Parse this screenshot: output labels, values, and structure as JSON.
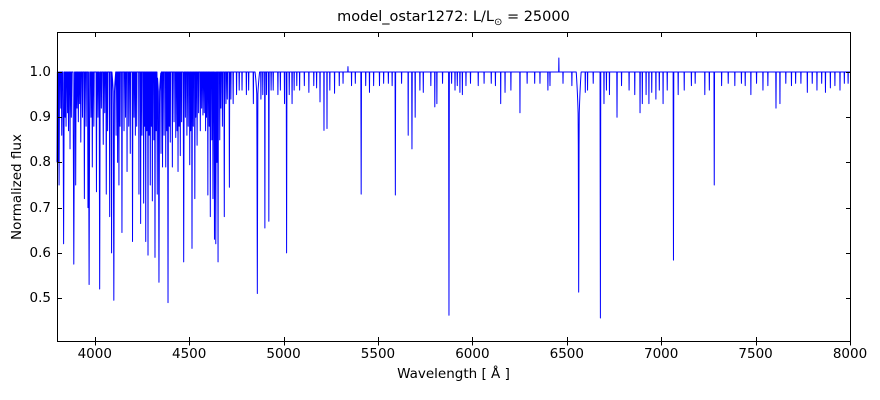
{
  "figure": {
    "background": "#ffffff"
  },
  "chart_data": {
    "type": "line",
    "title": "model_ostar1272: L/L⊙ = 25000",
    "title_parts": {
      "prefix": "model_ostar1272: L/L",
      "sub": "⊙",
      "suffix": " = 25000"
    },
    "xlabel": "Wavelength [ Å ]",
    "ylabel": "Normalized flux",
    "xlim": [
      3800,
      8000
    ],
    "ylim": [
      0.405,
      1.0885
    ],
    "xticks": [
      4000,
      4500,
      5000,
      5500,
      6000,
      6500,
      7000,
      7500,
      8000
    ],
    "yticks": [
      0.5,
      0.6,
      0.7,
      0.8,
      0.9,
      1.0
    ],
    "grid": false,
    "legend": null,
    "line_color": "#0000ff",
    "axis_color": "#000000",
    "continuum_flux": 1.0,
    "absorption_lines": [
      [
        3799,
        0.7,
        6
      ],
      [
        3806,
        0.8,
        5
      ],
      [
        3811,
        0.75,
        5
      ],
      [
        3820,
        0.92,
        4
      ],
      [
        3825,
        0.86,
        4
      ],
      [
        3835,
        0.62,
        7
      ],
      [
        3843,
        0.9,
        4
      ],
      [
        3848,
        0.88,
        4
      ],
      [
        3856,
        0.91,
        4
      ],
      [
        3861,
        0.87,
        4
      ],
      [
        3869,
        0.83,
        4
      ],
      [
        3876,
        0.9,
        4
      ],
      [
        3889,
        0.575,
        8
      ],
      [
        3899,
        0.75,
        4
      ],
      [
        3906,
        0.92,
        4
      ],
      [
        3913,
        0.89,
        4
      ],
      [
        3920,
        0.93,
        4
      ],
      [
        3926,
        0.845,
        4
      ],
      [
        3935,
        0.9,
        4
      ],
      [
        3945,
        0.72,
        4
      ],
      [
        3954,
        0.88,
        4
      ],
      [
        3964,
        0.7,
        4
      ],
      [
        3970,
        0.53,
        7
      ],
      [
        3980,
        0.9,
        4
      ],
      [
        3987,
        0.79,
        4
      ],
      [
        3995,
        0.88,
        4
      ],
      [
        4009,
        0.735,
        4
      ],
      [
        4017,
        0.9,
        4
      ],
      [
        4026,
        0.52,
        5.5
      ],
      [
        4035,
        0.92,
        4
      ],
      [
        4045,
        0.84,
        4
      ],
      [
        4053,
        0.91,
        3
      ],
      [
        4061,
        0.73,
        3.5
      ],
      [
        4068,
        0.87,
        3
      ],
      [
        4079,
        0.68,
        3.5
      ],
      [
        4089,
        0.6,
        3.5
      ],
      [
        4101,
        0.495,
        7
      ],
      [
        4101,
        0.88,
        20
      ],
      [
        4113,
        0.86,
        3
      ],
      [
        4121,
        0.8,
        3.5
      ],
      [
        4128,
        0.75,
        3
      ],
      [
        4134,
        0.88,
        3
      ],
      [
        4144,
        0.645,
        4
      ],
      [
        4155,
        0.87,
        3
      ],
      [
        4163,
        0.9,
        3
      ],
      [
        4171,
        0.78,
        3
      ],
      [
        4180,
        0.88,
        3
      ],
      [
        4188,
        0.82,
        3
      ],
      [
        4200,
        0.625,
        4
      ],
      [
        4208,
        0.9,
        3
      ],
      [
        4215,
        0.86,
        3
      ],
      [
        4222,
        0.88,
        3
      ],
      [
        4234,
        0.73,
        3
      ],
      [
        4243,
        0.665,
        3
      ],
      [
        4250,
        0.86,
        3
      ],
      [
        4259,
        0.71,
        3
      ],
      [
        4264,
        0.88,
        2.5
      ],
      [
        4270,
        0.625,
        3
      ],
      [
        4276,
        0.87,
        2.5
      ],
      [
        4282,
        0.595,
        3.5
      ],
      [
        4288,
        0.86,
        2.5
      ],
      [
        4294,
        0.75,
        3
      ],
      [
        4300,
        0.88,
        2.5
      ],
      [
        4305,
        0.715,
        3
      ],
      [
        4313,
        0.85,
        3
      ],
      [
        4319,
        0.59,
        3.5
      ],
      [
        4325,
        0.87,
        3
      ],
      [
        4331,
        0.73,
        3
      ],
      [
        4340,
        0.535,
        7
      ],
      [
        4340,
        0.88,
        20
      ],
      [
        4351,
        0.82,
        3
      ],
      [
        4359,
        0.79,
        3
      ],
      [
        4367,
        0.86,
        3
      ],
      [
        4376,
        0.79,
        3
      ],
      [
        4382,
        0.87,
        2.5
      ],
      [
        4388,
        0.49,
        4.5
      ],
      [
        4395,
        0.88,
        2.5
      ],
      [
        4400,
        0.845,
        3
      ],
      [
        4411,
        0.79,
        3
      ],
      [
        4420,
        0.89,
        3
      ],
      [
        4429,
        0.855,
        3
      ],
      [
        4436,
        0.87,
        2.5
      ],
      [
        4441,
        0.78,
        3
      ],
      [
        4447,
        0.88,
        2.5
      ],
      [
        4453,
        0.815,
        3
      ],
      [
        4460,
        0.89,
        2.5
      ],
      [
        4471,
        0.58,
        5
      ],
      [
        4480,
        0.9,
        2.5
      ],
      [
        4488,
        0.86,
        3
      ],
      [
        4495,
        0.88,
        2.5
      ],
      [
        4503,
        0.795,
        3
      ],
      [
        4508,
        0.87,
        2.5
      ],
      [
        4515,
        0.61,
        4
      ],
      [
        4522,
        0.88,
        2.5
      ],
      [
        4530,
        0.72,
        3
      ],
      [
        4535,
        0.9,
        2.5
      ],
      [
        4542,
        0.838,
        3.5
      ],
      [
        4550,
        0.91,
        2.5
      ],
      [
        4559,
        0.87,
        3
      ],
      [
        4566,
        0.92,
        2.5
      ],
      [
        4573,
        0.905,
        3
      ],
      [
        4580,
        0.91,
        2.5
      ],
      [
        4587,
        0.87,
        3
      ],
      [
        4592,
        0.9,
        2.5
      ],
      [
        4599,
        0.728,
        3
      ],
      [
        4606,
        0.88,
        2.5
      ],
      [
        4612,
        0.68,
        3.5
      ],
      [
        4620,
        0.85,
        3
      ],
      [
        4626,
        0.72,
        3.5
      ],
      [
        4634,
        0.63,
        4.5
      ],
      [
        4641,
        0.62,
        5
      ],
      [
        4647,
        0.8,
        3
      ],
      [
        4653,
        0.58,
        4
      ],
      [
        4662,
        0.85,
        3
      ],
      [
        4668,
        0.92,
        2.5
      ],
      [
        4676,
        0.88,
        3
      ],
      [
        4686,
        0.68,
        4
      ],
      [
        4695,
        0.93,
        2.5
      ],
      [
        4702,
        0.94,
        2.5
      ],
      [
        4713,
        0.745,
        3.5
      ],
      [
        4721,
        0.94,
        2.5
      ],
      [
        4733,
        0.93,
        2.5
      ],
      [
        4751,
        0.95,
        2.5
      ],
      [
        4765,
        0.96,
        2.5
      ],
      [
        4780,
        0.96,
        2.5
      ],
      [
        4803,
        0.95,
        2.5
      ],
      [
        4815,
        0.96,
        2.5
      ],
      [
        4840,
        0.93,
        2.5
      ],
      [
        4861,
        0.51,
        6
      ],
      [
        4861,
        0.89,
        24
      ],
      [
        4880,
        0.94,
        2.5
      ],
      [
        4890,
        0.95,
        2.5
      ],
      [
        4901,
        0.655,
        3
      ],
      [
        4910,
        0.95,
        2.5
      ],
      [
        4922,
        0.67,
        3.5
      ],
      [
        4934,
        0.96,
        2.5
      ],
      [
        4945,
        0.96,
        2.5
      ],
      [
        4970,
        0.95,
        2.5
      ],
      [
        4983,
        0.96,
        2.5
      ],
      [
        5005,
        0.93,
        2.5
      ],
      [
        5016,
        0.6,
        3.5
      ],
      [
        5030,
        0.95,
        2.5
      ],
      [
        5045,
        0.93,
        2.5
      ],
      [
        5056,
        0.96,
        2
      ],
      [
        5070,
        0.97,
        2
      ],
      [
        5085,
        0.96,
        2
      ],
      [
        5110,
        0.97,
        2
      ],
      [
        5134,
        0.955,
        2
      ],
      [
        5160,
        0.97,
        2
      ],
      [
        5175,
        0.965,
        2
      ],
      [
        5193,
        0.934,
        2
      ],
      [
        5214,
        0.871,
        2
      ],
      [
        5230,
        0.875,
        2
      ],
      [
        5245,
        0.96,
        2
      ],
      [
        5270,
        0.953,
        2
      ],
      [
        5295,
        0.97,
        2
      ],
      [
        5315,
        0.975,
        2
      ],
      [
        5360,
        0.97,
        2
      ],
      [
        5380,
        0.975,
        2
      ],
      [
        5411,
        0.73,
        3.5
      ],
      [
        5435,
        0.97,
        2
      ],
      [
        5455,
        0.955,
        2
      ],
      [
        5477,
        0.97,
        2
      ],
      [
        5508,
        0.97,
        2
      ],
      [
        5530,
        0.975,
        2
      ],
      [
        5555,
        0.975,
        2
      ],
      [
        5575,
        0.97,
        2
      ],
      [
        5592,
        0.728,
        3
      ],
      [
        5625,
        0.975,
        2
      ],
      [
        5660,
        0.86,
        2
      ],
      [
        5680,
        0.83,
        3
      ],
      [
        5697,
        0.9,
        2
      ],
      [
        5722,
        0.96,
        2
      ],
      [
        5740,
        0.955,
        2
      ],
      [
        5780,
        0.97,
        2
      ],
      [
        5801,
        0.923,
        2
      ],
      [
        5812,
        0.93,
        2
      ],
      [
        5842,
        0.975,
        2
      ],
      [
        5876,
        0.462,
        4
      ],
      [
        5890,
        0.975,
        2
      ],
      [
        5908,
        0.96,
        2
      ],
      [
        5920,
        0.97,
        2
      ],
      [
        5934,
        0.955,
        2
      ],
      [
        5947,
        0.95,
        2
      ],
      [
        5966,
        0.97,
        2
      ],
      [
        5990,
        0.975,
        2
      ],
      [
        6031,
        0.97,
        2
      ],
      [
        6062,
        0.975,
        2
      ],
      [
        6100,
        0.975,
        2
      ],
      [
        6122,
        0.97,
        2
      ],
      [
        6150,
        0.93,
        2
      ],
      [
        6173,
        0.955,
        2
      ],
      [
        6204,
        0.96,
        2
      ],
      [
        6252,
        0.91,
        2
      ],
      [
        6290,
        0.975,
        2
      ],
      [
        6330,
        0.975,
        2
      ],
      [
        6358,
        0.975,
        2
      ],
      [
        6400,
        0.96,
        2
      ],
      [
        6411,
        0.97,
        2
      ],
      [
        6480,
        0.975,
        2
      ],
      [
        6527,
        0.97,
        2
      ],
      [
        6563,
        0.513,
        6
      ],
      [
        6563,
        0.8,
        26
      ],
      [
        6598,
        0.955,
        2
      ],
      [
        6610,
        0.96,
        2
      ],
      [
        6640,
        0.975,
        2
      ],
      [
        6678,
        0.456,
        4
      ],
      [
        6697,
        0.93,
        2
      ],
      [
        6710,
        0.96,
        2
      ],
      [
        6726,
        0.95,
        2
      ],
      [
        6766,
        0.9,
        2.5
      ],
      [
        6790,
        0.97,
        2
      ],
      [
        6830,
        0.96,
        2
      ],
      [
        6860,
        0.95,
        2
      ],
      [
        6888,
        0.91,
        2.5
      ],
      [
        6900,
        0.93,
        2
      ],
      [
        6920,
        0.95,
        2
      ],
      [
        6935,
        0.93,
        2
      ],
      [
        6950,
        0.955,
        2
      ],
      [
        6972,
        0.94,
        2
      ],
      [
        6990,
        0.96,
        2
      ],
      [
        7010,
        0.93,
        2
      ],
      [
        7032,
        0.96,
        2
      ],
      [
        7065,
        0.584,
        3.5
      ],
      [
        7090,
        0.95,
        2
      ],
      [
        7122,
        0.96,
        2
      ],
      [
        7160,
        0.97,
        2
      ],
      [
        7180,
        0.975,
        2
      ],
      [
        7231,
        0.95,
        2
      ],
      [
        7255,
        0.96,
        2
      ],
      [
        7281,
        0.75,
        3
      ],
      [
        7320,
        0.97,
        2
      ],
      [
        7355,
        0.975,
        2
      ],
      [
        7390,
        0.97,
        2
      ],
      [
        7425,
        0.975,
        2
      ],
      [
        7445,
        0.97,
        2
      ],
      [
        7475,
        0.95,
        2
      ],
      [
        7505,
        0.975,
        2
      ],
      [
        7539,
        0.96,
        2
      ],
      [
        7565,
        0.97,
        2
      ],
      [
        7608,
        0.92,
        2.5
      ],
      [
        7629,
        0.93,
        2
      ],
      [
        7660,
        0.975,
        2
      ],
      [
        7690,
        0.97,
        2
      ],
      [
        7712,
        0.975,
        2
      ],
      [
        7740,
        0.975,
        2
      ],
      [
        7774,
        0.955,
        2
      ],
      [
        7800,
        0.975,
        2
      ],
      [
        7825,
        0.96,
        2
      ],
      [
        7850,
        0.975,
        2
      ],
      [
        7870,
        0.955,
        2
      ],
      [
        7896,
        0.965,
        2
      ],
      [
        7920,
        0.97,
        2
      ],
      [
        7947,
        0.96,
        2
      ],
      [
        7970,
        0.975,
        2
      ],
      [
        7990,
        0.975,
        2
      ]
    ],
    "emission_spikes": [
      [
        5341,
        1.012,
        2
      ],
      [
        6458,
        1.031,
        2
      ]
    ]
  }
}
